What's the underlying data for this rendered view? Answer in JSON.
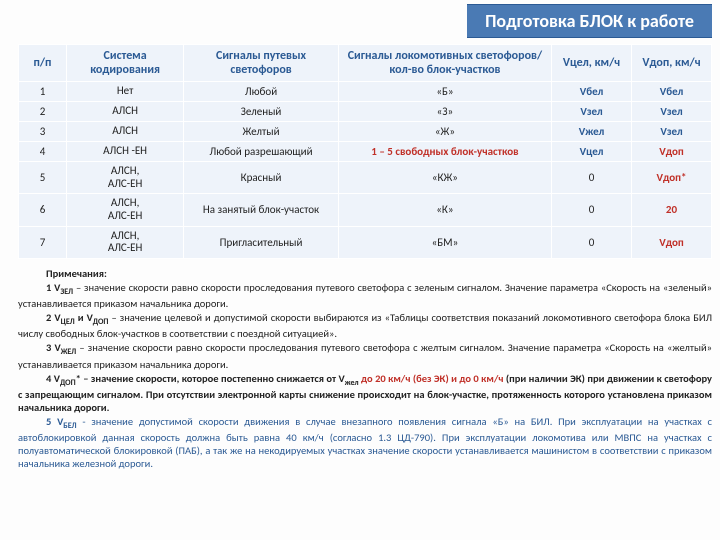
{
  "title": "Подготовка БЛОК к работе",
  "columns": {
    "c1": "п/п",
    "c2": "Система кодирования",
    "c3": "Сигналы путевых светофоров",
    "c4": "Сигналы локомотивных светофоров/кол-во блок-участков",
    "c5": "Vцел, км/ч",
    "c6": "Vдоп, км/ч"
  },
  "widths": {
    "c1": "45px",
    "c2": "110px",
    "c3": "145px",
    "c4": "200px",
    "c5": "75px",
    "c6": "75px"
  },
  "rows": [
    {
      "n": "1",
      "sys": "Нет",
      "path": "Любой",
      "loco": "«Б»",
      "vc": "Vбел",
      "vd": "Vбел",
      "vcCls": "vblue",
      "vdCls": "vblue"
    },
    {
      "n": "2",
      "sys": "АЛСН",
      "path": "Зеленый",
      "loco": "«З»",
      "vc": "Vзел",
      "vd": "Vзел",
      "vcCls": "vblue",
      "vdCls": "vblue"
    },
    {
      "n": "3",
      "sys": "АЛСН",
      "path": "Желтый",
      "loco": "«Ж»",
      "vc": "Vжел",
      "vd": "Vзел",
      "vcCls": "vblue",
      "vdCls": "vblue"
    },
    {
      "n": "4",
      "sys": "АЛСН -ЕН",
      "path": "Любой разрешающий",
      "loco": "1 – 5 свободных блок-участков",
      "vc": "Vцел",
      "vd": "Vдоп",
      "vcCls": "vblue",
      "vdCls": "vred",
      "sig4": true
    },
    {
      "n": "5",
      "sys": "АЛСН,\nАЛС-ЕН",
      "path": "Красный",
      "loco": "«КЖ»",
      "vc": "0",
      "vd": "Vдоп*",
      "vcCls": "",
      "vdCls": "vred"
    },
    {
      "n": "6",
      "sys": "АЛСН,\nАЛС-ЕН",
      "path": "На занятый блок-участок",
      "loco": "«К»",
      "vc": "0",
      "vd": "20",
      "vcCls": "",
      "vdCls": "vred"
    },
    {
      "n": "7",
      "sys": "АЛСН,\nАЛС-ЕН",
      "path": "Пригласительный",
      "loco": "«БМ»",
      "vc": "0",
      "vd": "Vдоп",
      "vcCls": "",
      "vdCls": "vred"
    }
  ],
  "notes": {
    "heading": "Примечания:",
    "n1a": "1 V",
    "n1sub": "ЗЕЛ",
    "n1b": " – значение скорости равно скорости проследования путевого светофора с зеленым сигналом. Значение параметра «Скорость на «зеленый» устанавливается приказом начальника дороги.",
    "n2a": "2 V",
    "n2subA": "ЦЕЛ",
    "n2b": " и V",
    "n2subB": "ДОП",
    "n2c": " – значение целевой и допустимой скорости выбираются из «Таблицы соответствия показаний локомотивного светофора блока БИЛ числу свободных блок-участков в соответствии с поездной ситуацией».",
    "n3a": "3 V",
    "n3sub": "ЖЕЛ",
    "n3b": " – значение скорости равно скорости проследования путевого светофора с желтым сигналом. Значение параметра «Скорость на «желтый» устанавливается приказом начальника дороги.",
    "n4a": "4 V",
    "n4sub": "ДОП",
    "n4b": "* – значение скорости, которое постепенно снижается от V",
    "n4subB": "жел",
    "n4c": " до ",
    "n4red1": " 20 км/ч (без ЭК) и до 0 км/ч ",
    "n4d": "(при наличии ЭК) при движении к светофору с запрещающим сигналом. При отсутствии электронной карты снижение происходит на блок-участке, протяженность которого установлена приказом начальника дороги.",
    "n5a": "5 V",
    "n5sub": "БЕЛ",
    "n5b": " - значение допустимой скорости движения в случае внезапного появления сигнала «Б» на БИЛ. При эксплуатации на участках с автоблокировкой данная скорость должна быть равна 40 км/ч (согласно  1.3 ЦД-790). При эксплуатации локомотива или МВПС на участках с полуавтоматической блокировкой (ПАБ), а так же на некодируемых участках значение скорости устанавливается машинистом в соответствии с приказом начальника железной дороги."
  }
}
